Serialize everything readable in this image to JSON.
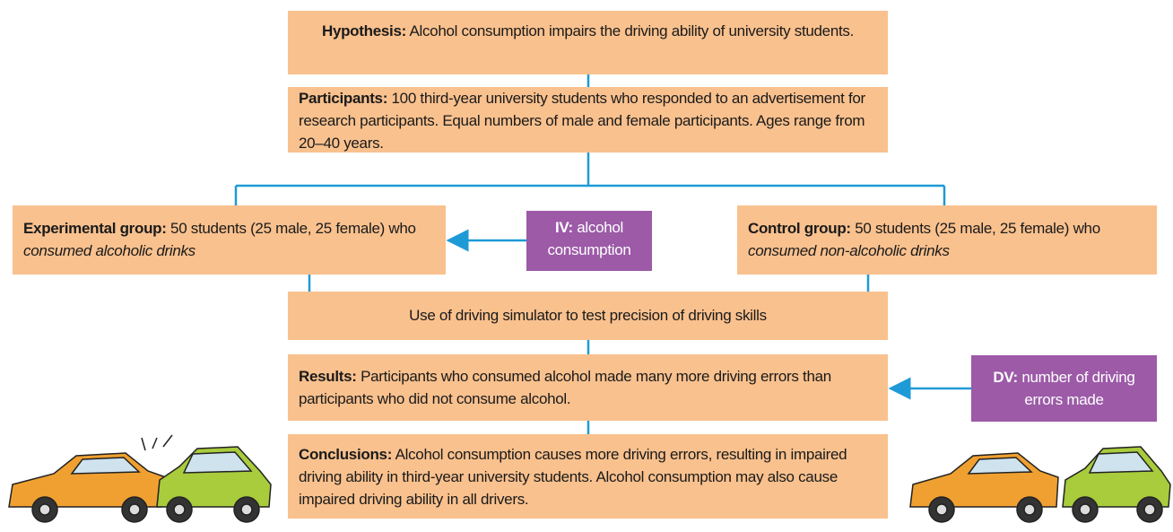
{
  "hypothesis": {
    "label": "Hypothesis:",
    "text": "Alcohol consumption impairs the driving ability of university students."
  },
  "participants": {
    "label": "Participants:",
    "text": "100 third-year university students who responded to an advertisement for research participants. Equal numbers of male and female participants. Ages range from 20–40 years."
  },
  "experimental": {
    "label": "Experimental group:",
    "text": "50 students (25 male, 25 female) who",
    "italic": "consumed alcoholic drinks"
  },
  "iv": {
    "label": "IV:",
    "text": "alcohol consumption"
  },
  "control": {
    "label": "Control group:",
    "text": "50 students (25 male, 25 female) who",
    "italic": "consumed non-alcoholic drinks"
  },
  "simulator": {
    "text": "Use of driving simulator to test precision of driving skills"
  },
  "results": {
    "label": "Results:",
    "text": "Participants who consumed alcohol made many more driving errors than participants who did not consume alcohol."
  },
  "dv": {
    "label": "DV:",
    "text": "number of driving errors made"
  },
  "conclusions": {
    "label": "Conclusions:",
    "text": "Alcohol consumption causes more driving errors, resulting in impaired driving ability in third-year university students. Alcohol consumption may also cause impaired driving ability in all drivers."
  }
}
